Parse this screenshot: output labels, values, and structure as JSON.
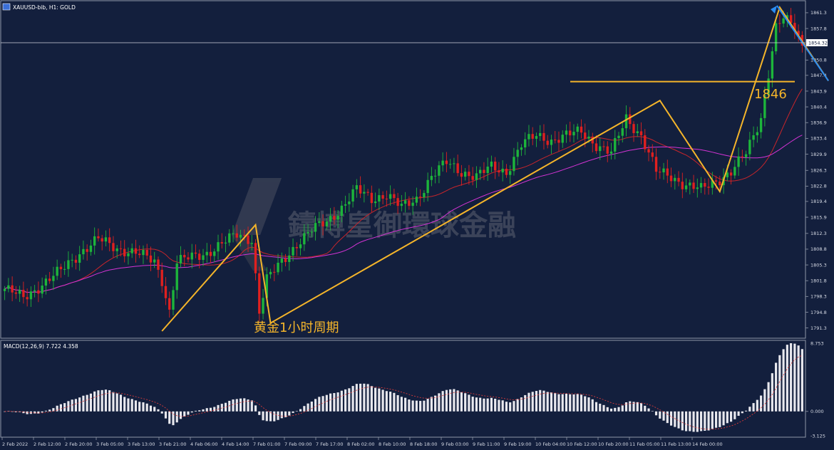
{
  "window": {
    "title": "XAUUSD-bib, H1: GOLD",
    "icon": "chart-window-icon"
  },
  "chart_data": [
    {
      "type": "candlestick",
      "title": "XAUUSD-bib, H1: GOLD",
      "ylim": [
        1789.5,
        1863.5
      ],
      "yticks": [
        1861.3,
        1857.8,
        1850.8,
        1847.4,
        1843.9,
        1840.4,
        1836.9,
        1833.4,
        1829.9,
        1826.3,
        1822.8,
        1819.4,
        1815.9,
        1812.3,
        1808.8,
        1805.3,
        1801.8,
        1798.3,
        1794.8,
        1791.3
      ],
      "current_price": "1854.32",
      "xticks": [
        "2 Feb 2022",
        "2 Feb 12:00",
        "2 Feb 20:00",
        "3 Feb 05:00",
        "3 Feb 13:00",
        "3 Feb 21:00",
        "4 Feb 06:00",
        "4 Feb 14:00",
        "7 Feb 01:00",
        "7 Feb 09:00",
        "7 Feb 17:00",
        "8 Feb 02:00",
        "8 Feb 10:00",
        "8 Feb 18:00",
        "9 Feb 03:00",
        "9 Feb 11:00",
        "9 Feb 19:00",
        "10 Feb 04:00",
        "10 Feb 12:00",
        "10 Feb 20:00",
        "11 Feb 05:00",
        "11 Feb 13:00",
        "14 Feb 00:00"
      ],
      "price_path": [
        [
          0,
          1800
        ],
        [
          5,
          1798
        ],
        [
          10,
          1801
        ],
        [
          15,
          1804
        ],
        [
          20,
          1808
        ],
        [
          25,
          1811
        ],
        [
          30,
          1809
        ],
        [
          35,
          1808
        ],
        [
          40,
          1806
        ],
        [
          42,
          1802
        ],
        [
          44,
          1795
        ],
        [
          46,
          1806
        ],
        [
          50,
          1807
        ],
        [
          54,
          1808
        ],
        [
          58,
          1810
        ],
        [
          62,
          1812
        ],
        [
          66,
          1811
        ],
        [
          68,
          1795
        ],
        [
          70,
          1802
        ],
        [
          74,
          1806
        ],
        [
          78,
          1810
        ],
        [
          82,
          1813
        ],
        [
          86,
          1815
        ],
        [
          90,
          1818
        ],
        [
          94,
          1822
        ],
        [
          98,
          1820
        ],
        [
          102,
          1821
        ],
        [
          106,
          1818
        ],
        [
          110,
          1820
        ],
        [
          114,
          1825
        ],
        [
          118,
          1828
        ],
        [
          122,
          1826
        ],
        [
          126,
          1825
        ],
        [
          130,
          1827
        ],
        [
          134,
          1826
        ],
        [
          138,
          1832
        ],
        [
          142,
          1834
        ],
        [
          146,
          1833
        ],
        [
          150,
          1834
        ],
        [
          154,
          1835
        ],
        [
          158,
          1832
        ],
        [
          162,
          1830
        ],
        [
          166,
          1838
        ],
        [
          170,
          1834
        ],
        [
          174,
          1826
        ],
        [
          178,
          1825
        ],
        [
          182,
          1823
        ],
        [
          186,
          1822
        ],
        [
          190,
          1824
        ],
        [
          194,
          1826
        ],
        [
          198,
          1830
        ],
        [
          202,
          1838
        ],
        [
          204,
          1848
        ],
        [
          206,
          1858
        ],
        [
          208,
          1860
        ],
        [
          211,
          1858
        ],
        [
          213,
          1854
        ]
      ],
      "indicators": [
        {
          "name": "MA",
          "color": "#c8252b"
        },
        {
          "name": "MA",
          "color": "#d433d4"
        }
      ],
      "annotations": [
        {
          "text": "1846",
          "price": 1846
        },
        {
          "text": "黄金1小时周期"
        }
      ],
      "watermark": {
        "text": "鑄博皇御環球金融"
      }
    },
    {
      "type": "bar",
      "title": "MACD(12,26,9) 7.722 4.358",
      "ylim": [
        -3.125,
        8.753
      ],
      "yticks": [
        "8.753",
        "0.000",
        "-3.125"
      ],
      "zero_line": 0,
      "bar_color": "#e8e8ee",
      "signal_color": "#d63a3a"
    }
  ]
}
